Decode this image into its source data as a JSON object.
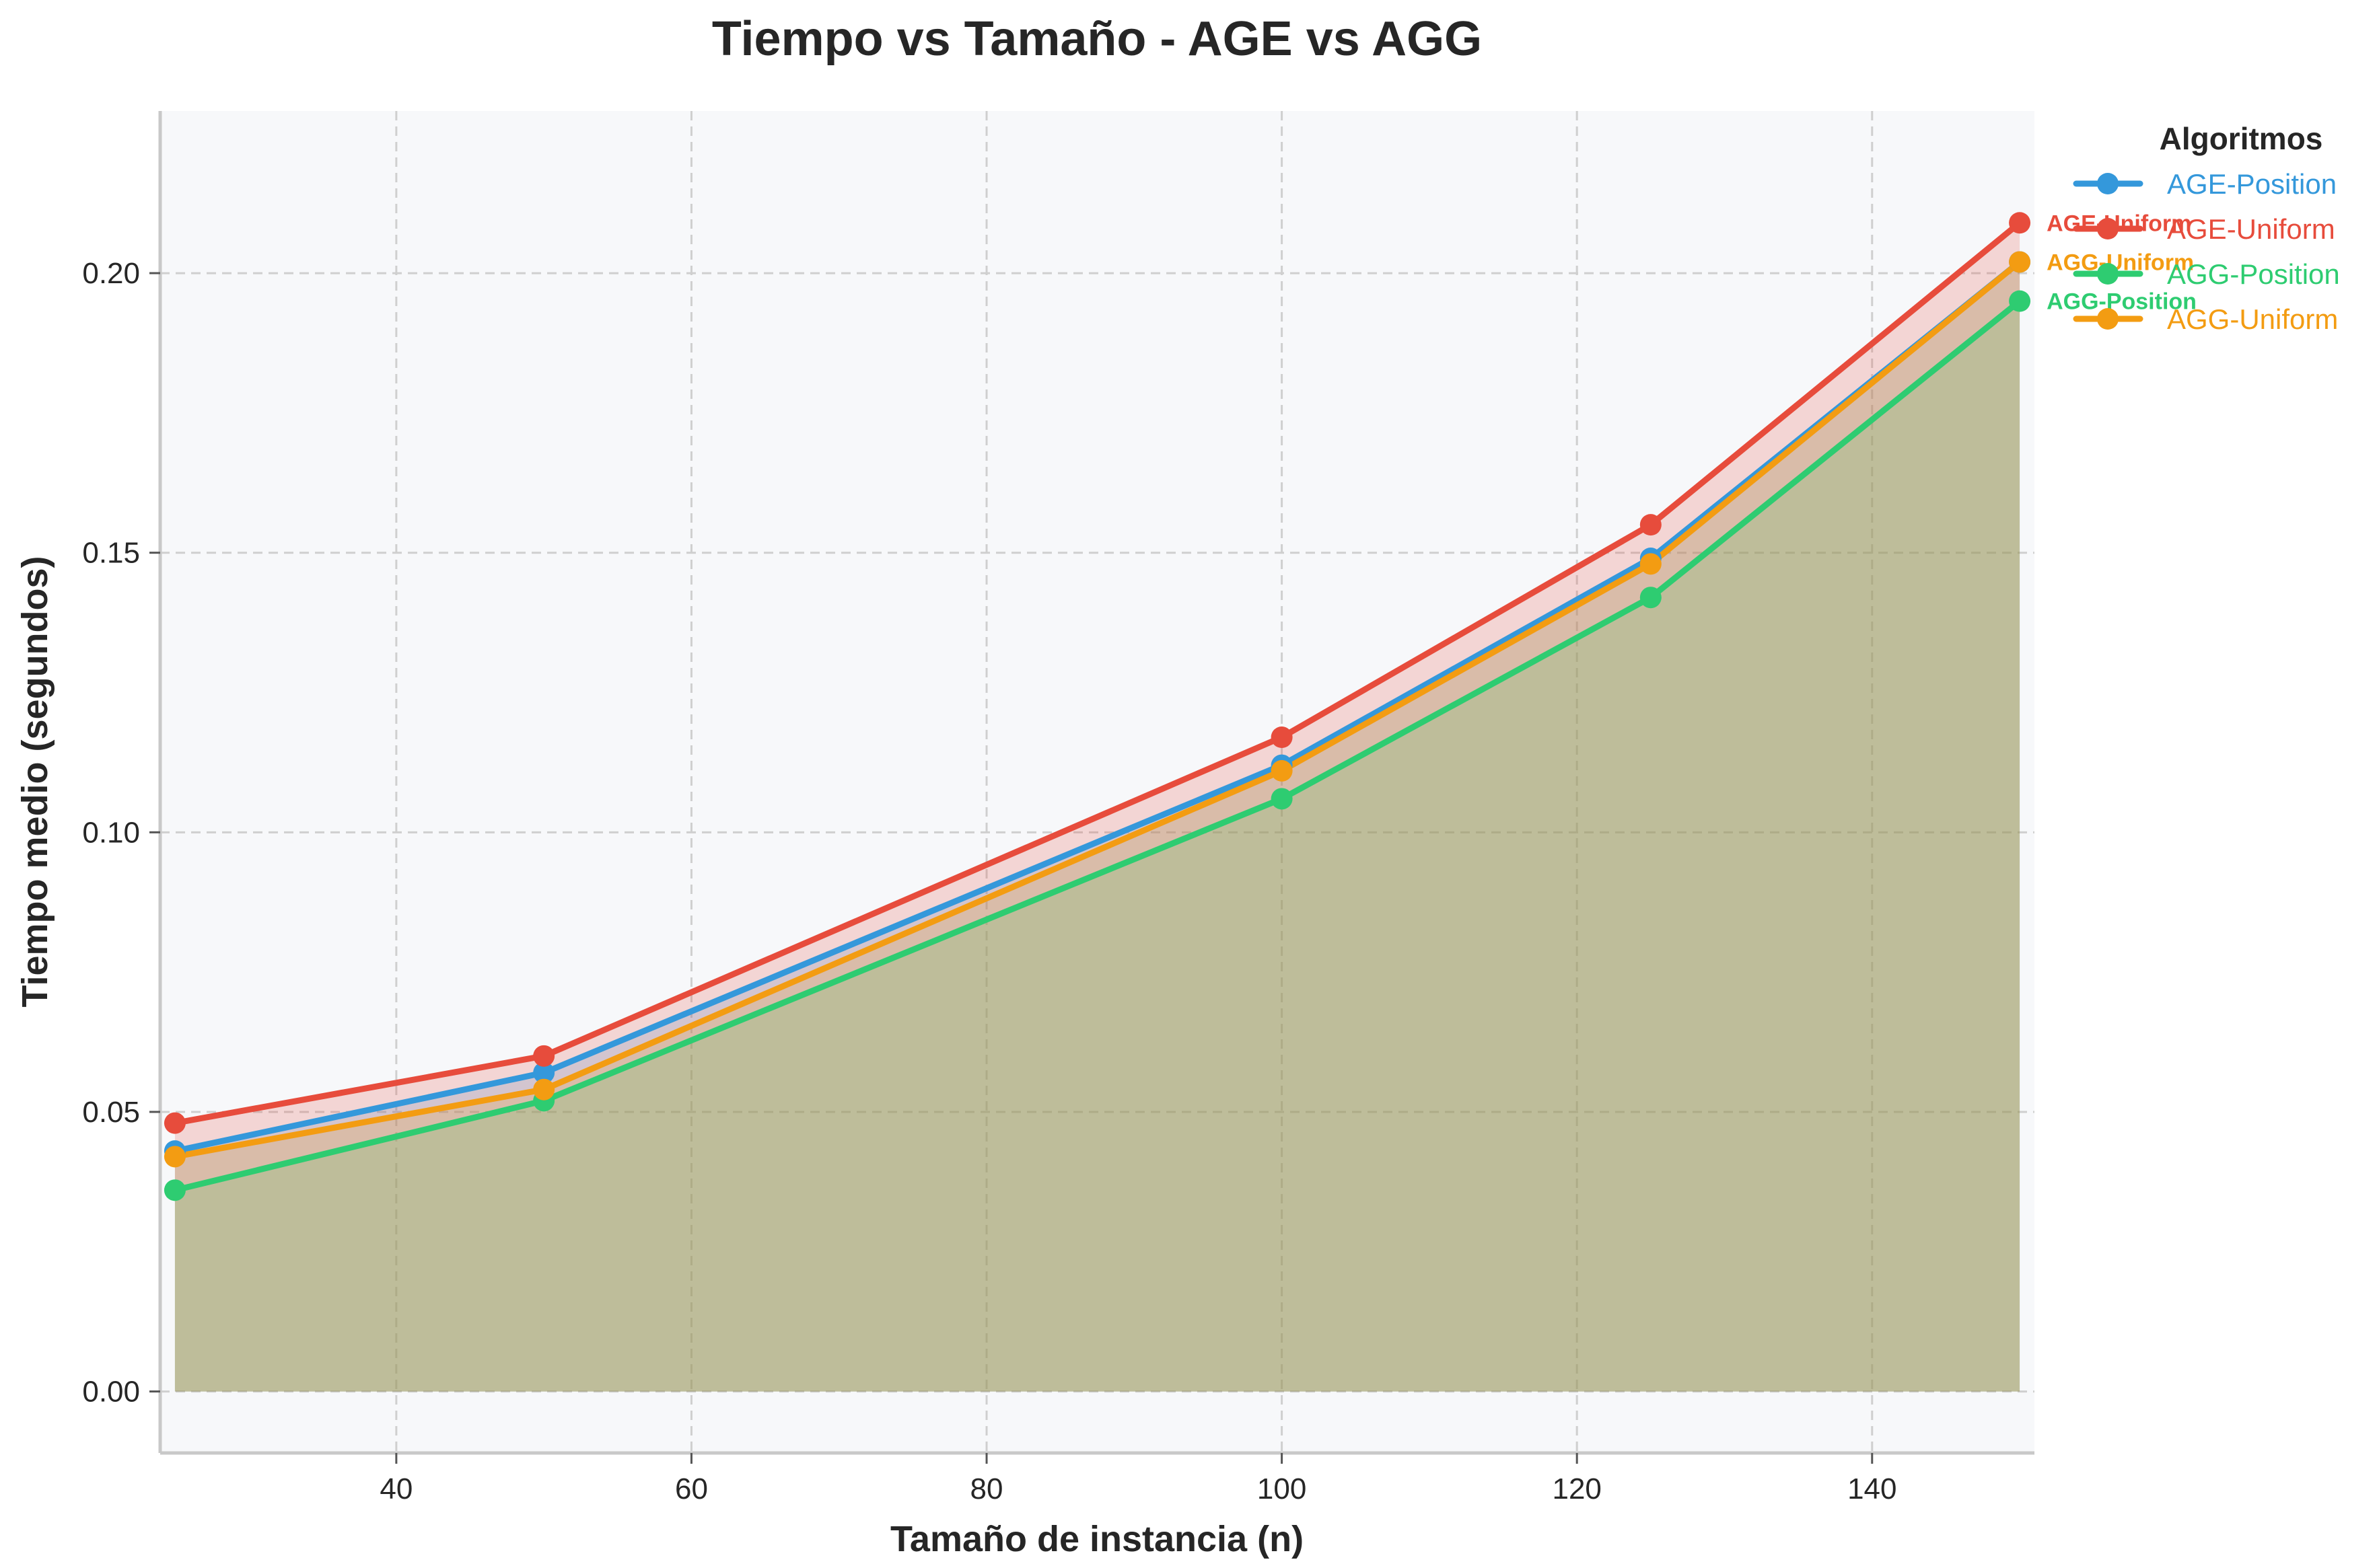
{
  "chart_data": {
    "type": "line",
    "title": "Tiempo vs Tamaño - AGE vs AGG",
    "xlabel": "Tamaño de instancia (n)",
    "ylabel": "Tiempo medio (segundos)",
    "xlim": [
      24,
      151
    ],
    "ylim": [
      -0.011,
      0.229
    ],
    "xticks": [
      40,
      60,
      80,
      100,
      120,
      140
    ],
    "yticks": [
      0.0,
      0.05,
      0.1,
      0.15,
      0.2
    ],
    "ytick_labels": [
      "0.00",
      "0.05",
      "0.10",
      "0.15",
      "0.20"
    ],
    "grid": true,
    "fill_under": true,
    "legend": {
      "title": "Algoritmos",
      "placement": "outside-top-right"
    },
    "x": [
      25,
      50,
      100,
      125,
      150
    ],
    "series": [
      {
        "name": "AGE-Position",
        "color": "#3498db",
        "values": [
          0.043,
          0.057,
          0.112,
          0.149,
          0.202
        ]
      },
      {
        "name": "AGE-Uniform",
        "color": "#e74c3c",
        "values": [
          0.048,
          0.06,
          0.117,
          0.155,
          0.209
        ]
      },
      {
        "name": "AGG-Position",
        "color": "#2ecc71",
        "values": [
          0.036,
          0.052,
          0.106,
          0.142,
          0.195
        ]
      },
      {
        "name": "AGG-Uniform",
        "color": "#f39c12",
        "values": [
          0.042,
          0.054,
          0.111,
          0.148,
          0.202
        ]
      }
    ],
    "end_labels": [
      {
        "text": "AGE-Uniform",
        "series": "AGE-Uniform"
      },
      {
        "text": "AGG-Uniform",
        "series": "AGG-Uniform"
      },
      {
        "text": "AGG-Position",
        "series": "AGG-Position"
      }
    ]
  }
}
